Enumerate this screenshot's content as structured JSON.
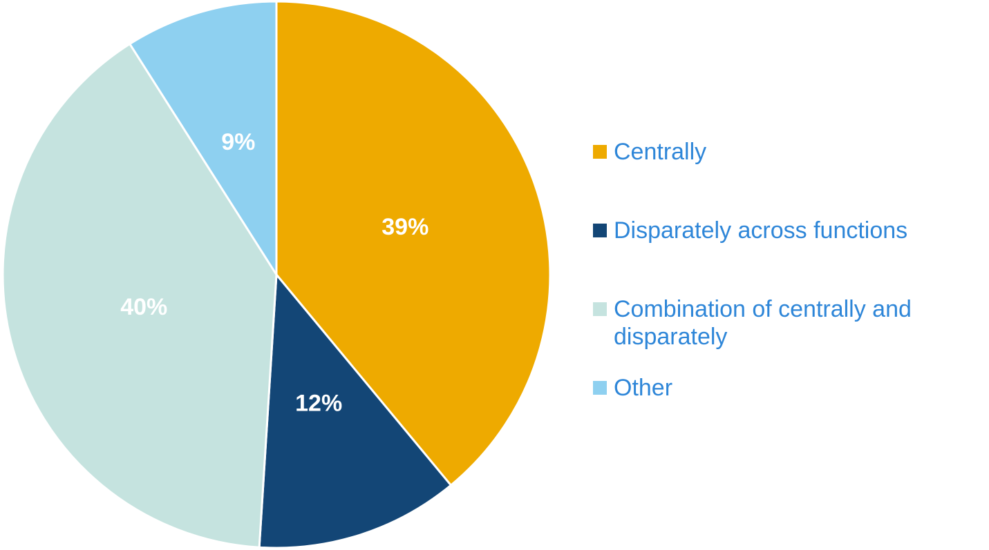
{
  "chart_data": {
    "type": "pie",
    "categories": [
      "Centrally",
      "Disparately across functions",
      "Combination of centrally and disparately",
      "Other"
    ],
    "values": [
      39,
      12,
      40,
      9
    ],
    "value_labels": [
      "39%",
      "12%",
      "40%",
      "9%"
    ],
    "colors": [
      "#eeaa00",
      "#134676",
      "#c5e3df",
      "#8ed0f0"
    ],
    "legend": "right"
  }
}
